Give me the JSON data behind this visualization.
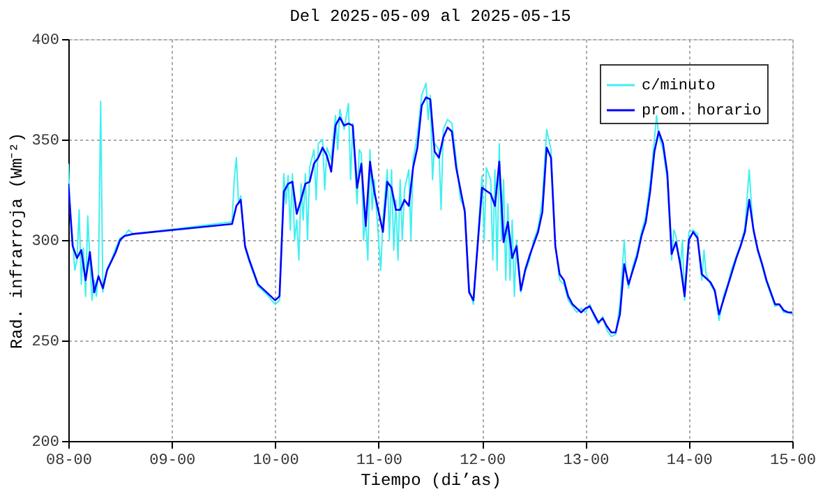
{
  "chart_data": {
    "type": "line",
    "title": "Del 2025-05-09 al 2025-05-15",
    "xlabel": "Tiempo (di’as)",
    "ylabel": "Rad. infrarroja (Wm⁻²)",
    "xlim": [
      "2025-05-08T00:00",
      "2025-05-15T00:00"
    ],
    "xticks": [
      {
        "value": "2025-05-08T00:00",
        "label": "08-00"
      },
      {
        "value": "2025-05-09T00:00",
        "label": "09-00"
      },
      {
        "value": "2025-05-10T00:00",
        "label": "10-00"
      },
      {
        "value": "2025-05-11T00:00",
        "label": "11-00"
      },
      {
        "value": "2025-05-12T00:00",
        "label": "12-00"
      },
      {
        "value": "2025-05-13T00:00",
        "label": "13-00"
      },
      {
        "value": "2025-05-14T00:00",
        "label": "14-00"
      },
      {
        "value": "2025-05-15T00:00",
        "label": "15-00"
      }
    ],
    "ylim": [
      200,
      400
    ],
    "yticks": [
      200,
      250,
      300,
      350,
      400
    ],
    "grid": true,
    "legend": "top right",
    "marker": "none",
    "line_style": "solid",
    "series": [
      {
        "name": "c/minuto",
        "color": "#40f0f0",
        "x": [
          "2025-05-08T00:00",
          "2025-05-08T00:30",
          "2025-05-08T01:00",
          "2025-05-08T01:30",
          "2025-05-08T02:00",
          "2025-05-08T02:30",
          "2025-05-08T03:00",
          "2025-05-08T03:30",
          "2025-05-08T04:00",
          "2025-05-08T04:30",
          "2025-05-08T05:00",
          "2025-05-08T05:30",
          "2025-05-08T06:00",
          "2025-05-08T06:30",
          "2025-05-08T07:00",
          "2025-05-08T07:30",
          "2025-05-08T08:00",
          "2025-05-08T08:30",
          "2025-05-08T09:00",
          "2025-05-08T10:00",
          "2025-05-08T11:00",
          "2025-05-08T12:00",
          "2025-05-08T13:00",
          "2025-05-08T14:00",
          "2025-05-08T15:00",
          "2025-05-09T14:00",
          "2025-05-09T14:30",
          "2025-05-09T15:00",
          "2025-05-09T15:30",
          "2025-05-09T16:00",
          "2025-05-09T17:00",
          "2025-05-09T18:00",
          "2025-05-09T20:00",
          "2025-05-09T22:00",
          "2025-05-10T00:00",
          "2025-05-10T01:00",
          "2025-05-10T01:30",
          "2025-05-10T02:00",
          "2025-05-10T02:30",
          "2025-05-10T03:00",
          "2025-05-10T03:30",
          "2025-05-10T04:00",
          "2025-05-10T04:30",
          "2025-05-10T05:00",
          "2025-05-10T05:30",
          "2025-05-10T06:00",
          "2025-05-10T06:30",
          "2025-05-10T07:00",
          "2025-05-10T07:30",
          "2025-05-10T08:00",
          "2025-05-10T09:00",
          "2025-05-10T09:30",
          "2025-05-10T10:00",
          "2025-05-10T11:00",
          "2025-05-10T11:30",
          "2025-05-10T12:00",
          "2025-05-10T13:00",
          "2025-05-10T14:00",
          "2025-05-10T14:30",
          "2025-05-10T15:00",
          "2025-05-10T16:00",
          "2025-05-10T17:00",
          "2025-05-10T17:30",
          "2025-05-10T18:00",
          "2025-05-10T19:00",
          "2025-05-10T19:30",
          "2025-05-10T20:00",
          "2025-05-10T20:30",
          "2025-05-10T21:00",
          "2025-05-10T21:30",
          "2025-05-10T22:00",
          "2025-05-10T22:30",
          "2025-05-10T23:00",
          "2025-05-11T00:00",
          "2025-05-11T00:30",
          "2025-05-11T01:00",
          "2025-05-11T02:00",
          "2025-05-11T02:30",
          "2025-05-11T03:00",
          "2025-05-11T03:30",
          "2025-05-11T04:00",
          "2025-05-11T04:30",
          "2025-05-11T05:00",
          "2025-05-11T05:30",
          "2025-05-11T06:00",
          "2025-05-11T07:00",
          "2025-05-11T07:30",
          "2025-05-11T08:00",
          "2025-05-11T09:00",
          "2025-05-11T10:00",
          "2025-05-11T11:00",
          "2025-05-11T11:30",
          "2025-05-11T12:00",
          "2025-05-11T12:30",
          "2025-05-11T13:00",
          "2025-05-11T14:00",
          "2025-05-11T14:30",
          "2025-05-11T15:00",
          "2025-05-11T16:00",
          "2025-05-11T17:00",
          "2025-05-11T18:00",
          "2025-05-11T19:00",
          "2025-05-11T20:00",
          "2025-05-11T21:00",
          "2025-05-11T22:00",
          "2025-05-11T23:00",
          "2025-05-12T00:00",
          "2025-05-12T00:30",
          "2025-05-12T01:00",
          "2025-05-12T02:00",
          "2025-05-12T02:30",
          "2025-05-12T03:00",
          "2025-05-12T03:30",
          "2025-05-12T04:00",
          "2025-05-12T04:30",
          "2025-05-12T05:00",
          "2025-05-12T05:30",
          "2025-05-12T06:00",
          "2025-05-12T06:30",
          "2025-05-12T07:00",
          "2025-05-12T07:30",
          "2025-05-12T08:00",
          "2025-05-12T09:00",
          "2025-05-12T10:00",
          "2025-05-12T11:00",
          "2025-05-12T12:00",
          "2025-05-12T13:00",
          "2025-05-12T14:00",
          "2025-05-12T15:00",
          "2025-05-12T16:00",
          "2025-05-12T17:00",
          "2025-05-12T18:00",
          "2025-05-12T19:00",
          "2025-05-12T20:00",
          "2025-05-12T21:00",
          "2025-05-12T22:00",
          "2025-05-12T23:00",
          "2025-05-13T00:00",
          "2025-05-13T01:00",
          "2025-05-13T02:00",
          "2025-05-13T03:00",
          "2025-05-13T04:00",
          "2025-05-13T05:00",
          "2025-05-13T06:00",
          "2025-05-13T07:00",
          "2025-05-13T08:00",
          "2025-05-13T09:00",
          "2025-05-13T09:30",
          "2025-05-13T10:00",
          "2025-05-13T11:00",
          "2025-05-13T12:00",
          "2025-05-13T13:00",
          "2025-05-13T14:00",
          "2025-05-13T15:00",
          "2025-05-13T16:00",
          "2025-05-13T16:30",
          "2025-05-13T17:00",
          "2025-05-13T18:00",
          "2025-05-13T19:00",
          "2025-05-13T20:00",
          "2025-05-13T20:30",
          "2025-05-13T21:00",
          "2025-05-13T22:00",
          "2025-05-13T22:30",
          "2025-05-13T23:00",
          "2025-05-14T00:00",
          "2025-05-14T01:00",
          "2025-05-14T02:00",
          "2025-05-14T02:30",
          "2025-05-14T03:00",
          "2025-05-14T03:30",
          "2025-05-14T04:00",
          "2025-05-14T05:00",
          "2025-05-14T06:00",
          "2025-05-14T07:00",
          "2025-05-14T08:00",
          "2025-05-14T09:00",
          "2025-05-14T10:00",
          "2025-05-14T11:00",
          "2025-05-14T12:00",
          "2025-05-14T13:00",
          "2025-05-14T14:00",
          "2025-05-14T14:30",
          "2025-05-14T15:00",
          "2025-05-14T16:00",
          "2025-05-14T17:00",
          "2025-05-14T18:00",
          "2025-05-14T19:00",
          "2025-05-14T20:00",
          "2025-05-14T21:00",
          "2025-05-14T22:00",
          "2025-05-14T23:00",
          "2025-05-15T00:00"
        ],
        "values": [
          338,
          310,
          300,
          285,
          290,
          315,
          278,
          296,
          272,
          312,
          290,
          270,
          280,
          272,
          284,
          369,
          274,
          280,
          286,
          290,
          296,
          301,
          302,
          305,
          303,
          309,
          330,
          341,
          318,
          322,
          296,
          289,
          277,
          273,
          268,
          270,
          300,
          333,
          318,
          332,
          305,
          333,
          300,
          310,
          290,
          328,
          310,
          333,
          300,
          336,
          345,
          320,
          348,
          350,
          325,
          346,
          340,
          362,
          345,
          365,
          355,
          368,
          330,
          358,
          318,
          345,
          343,
          300,
          310,
          290,
          345,
          315,
          330,
          300,
          285,
          310,
          335,
          300,
          335,
          295,
          320,
          290,
          330,
          300,
          325,
          335,
          300,
          340,
          352,
          372,
          378,
          360,
          372,
          330,
          348,
          345,
          315,
          355,
          360,
          358,
          340,
          320,
          316,
          276,
          268,
          300,
          332,
          300,
          336,
          330,
          290,
          335,
          285,
          348,
          300,
          330,
          280,
          318,
          280,
          310,
          272,
          300,
          274,
          284,
          290,
          300,
          306,
          320,
          355,
          345,
          298,
          280,
          278,
          270,
          267,
          264,
          266,
          264,
          268,
          262,
          258,
          262,
          255,
          252,
          253,
          268,
          300,
          282,
          276,
          287,
          294,
          304,
          312,
          328,
          350,
          362,
          352,
          345,
          330,
          290,
          305,
          302,
          286,
          300,
          270,
          304,
          305,
          303,
          290,
          280,
          295,
          283,
          278,
          274,
          260,
          272,
          278,
          286,
          292,
          298,
          306,
          335,
          318,
          304,
          294,
          287,
          279,
          273,
          267,
          268,
          264,
          264,
          263
        ]
      },
      {
        "name": "prom. horario",
        "color": "#0000ff",
        "x": [
          "2025-05-08T00:00",
          "2025-05-08T01:00",
          "2025-05-08T02:00",
          "2025-05-08T03:00",
          "2025-05-08T04:00",
          "2025-05-08T05:00",
          "2025-05-08T06:00",
          "2025-05-08T07:00",
          "2025-05-08T08:00",
          "2025-05-08T09:00",
          "2025-05-08T11:00",
          "2025-05-08T12:00",
          "2025-05-08T13:00",
          "2025-05-08T15:00",
          "2025-05-09T14:00",
          "2025-05-09T15:00",
          "2025-05-09T16:00",
          "2025-05-09T17:00",
          "2025-05-09T18:00",
          "2025-05-09T20:00",
          "2025-05-09T22:00",
          "2025-05-10T00:00",
          "2025-05-10T01:00",
          "2025-05-10T02:00",
          "2025-05-10T03:00",
          "2025-05-10T04:00",
          "2025-05-10T05:00",
          "2025-05-10T06:00",
          "2025-05-10T07:00",
          "2025-05-10T08:00",
          "2025-05-10T09:00",
          "2025-05-10T10:00",
          "2025-05-10T11:00",
          "2025-05-10T12:00",
          "2025-05-10T13:00",
          "2025-05-10T14:00",
          "2025-05-10T15:00",
          "2025-05-10T16:00",
          "2025-05-10T17:00",
          "2025-05-10T18:00",
          "2025-05-10T19:00",
          "2025-05-10T20:00",
          "2025-05-10T21:00",
          "2025-05-10T22:00",
          "2025-05-10T23:00",
          "2025-05-11T01:00",
          "2025-05-11T02:00",
          "2025-05-11T03:00",
          "2025-05-11T04:00",
          "2025-05-11T05:00",
          "2025-05-11T06:00",
          "2025-05-11T07:00",
          "2025-05-11T08:00",
          "2025-05-11T09:00",
          "2025-05-11T10:00",
          "2025-05-11T11:00",
          "2025-05-11T12:00",
          "2025-05-11T13:00",
          "2025-05-11T14:00",
          "2025-05-11T15:00",
          "2025-05-11T16:00",
          "2025-05-11T17:00",
          "2025-05-11T18:00",
          "2025-05-11T20:00",
          "2025-05-11T21:00",
          "2025-05-11T22:00",
          "2025-05-12T00:00",
          "2025-05-12T02:00",
          "2025-05-12T03:00",
          "2025-05-12T04:00",
          "2025-05-12T05:00",
          "2025-05-12T06:00",
          "2025-05-12T07:00",
          "2025-05-12T08:00",
          "2025-05-12T09:00",
          "2025-05-12T10:00",
          "2025-05-12T11:00",
          "2025-05-12T12:00",
          "2025-05-12T13:00",
          "2025-05-12T14:00",
          "2025-05-12T15:00",
          "2025-05-12T16:00",
          "2025-05-12T17:00",
          "2025-05-12T18:00",
          "2025-05-12T19:00",
          "2025-05-12T20:00",
          "2025-05-12T21:00",
          "2025-05-12T22:00",
          "2025-05-12T23:00",
          "2025-05-13T00:00",
          "2025-05-13T01:00",
          "2025-05-13T02:00",
          "2025-05-13T03:00",
          "2025-05-13T04:00",
          "2025-05-13T05:00",
          "2025-05-13T06:00",
          "2025-05-13T07:00",
          "2025-05-13T08:00",
          "2025-05-13T09:00",
          "2025-05-13T10:00",
          "2025-05-13T11:00",
          "2025-05-13T12:00",
          "2025-05-13T13:00",
          "2025-05-13T14:00",
          "2025-05-13T15:00",
          "2025-05-13T16:00",
          "2025-05-13T17:00",
          "2025-05-13T18:00",
          "2025-05-13T19:00",
          "2025-05-13T20:00",
          "2025-05-13T21:00",
          "2025-05-13T22:00",
          "2025-05-13T23:00",
          "2025-05-14T00:00",
          "2025-05-14T01:00",
          "2025-05-14T02:00",
          "2025-05-14T03:00",
          "2025-05-14T04:00",
          "2025-05-14T05:00",
          "2025-05-14T06:00",
          "2025-05-14T07:00",
          "2025-05-14T08:00",
          "2025-05-14T09:00",
          "2025-05-14T10:00",
          "2025-05-14T11:00",
          "2025-05-14T12:00",
          "2025-05-14T13:00",
          "2025-05-14T14:00",
          "2025-05-14T15:00",
          "2025-05-14T16:00",
          "2025-05-14T17:00",
          "2025-05-14T18:00",
          "2025-05-14T19:00",
          "2025-05-14T20:00",
          "2025-05-14T21:00",
          "2025-05-14T22:00",
          "2025-05-14T23:00",
          "2025-05-15T00:00"
        ],
        "values": [
          328,
          297,
          291,
          295,
          280,
          294,
          274,
          282,
          276,
          285,
          294,
          300,
          302,
          303,
          308,
          317,
          320,
          297,
          290,
          278,
          274,
          270,
          272,
          324,
          328,
          329,
          313,
          320,
          328,
          329,
          338,
          341,
          346,
          342,
          334,
          357,
          361,
          357,
          358,
          357,
          326,
          338,
          307,
          339,
          324,
          304,
          329,
          326,
          315,
          315,
          320,
          317,
          336,
          346,
          367,
          371,
          370,
          344,
          341,
          351,
          356,
          354,
          336,
          314,
          274,
          270,
          326,
          323,
          317,
          339,
          299,
          309,
          291,
          297,
          275,
          285,
          292,
          298,
          304,
          314,
          346,
          341,
          297,
          283,
          280,
          272,
          268,
          266,
          264,
          266,
          267,
          263,
          259,
          261,
          257,
          254,
          254,
          263,
          288,
          278,
          285,
          292,
          302,
          309,
          324,
          344,
          354,
          348,
          333,
          293,
          299,
          288,
          272,
          300,
          304,
          301,
          283,
          281,
          279,
          275,
          263,
          270,
          277,
          284,
          291,
          297,
          304,
          320,
          305,
          295,
          288,
          280,
          274,
          268,
          268,
          265,
          264,
          264
        ]
      }
    ]
  }
}
